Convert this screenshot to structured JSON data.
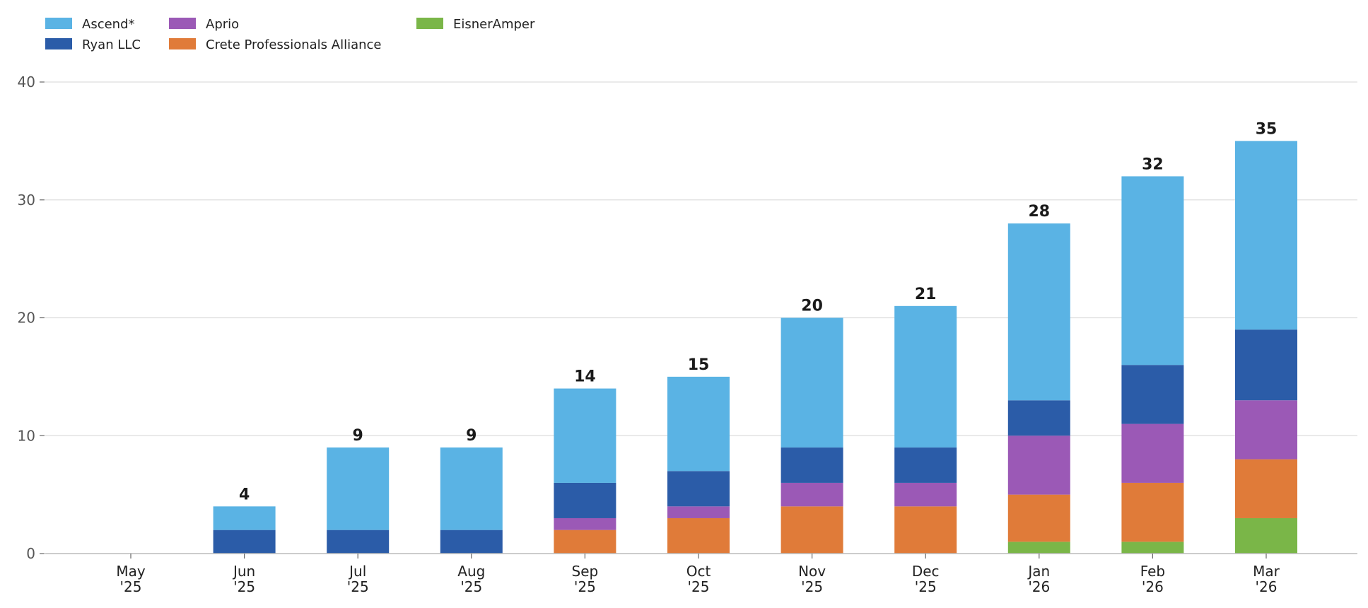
{
  "chart_data": {
    "type": "bar",
    "stacked": true,
    "categories": [
      [
        "May",
        "'25"
      ],
      [
        "Jun",
        "'25"
      ],
      [
        "Jul",
        "'25"
      ],
      [
        "Aug",
        "'25"
      ],
      [
        "Sep",
        "'25"
      ],
      [
        "Oct",
        "'25"
      ],
      [
        "Nov",
        "'25"
      ],
      [
        "Dec",
        "'25"
      ],
      [
        "Jan",
        "'26"
      ],
      [
        "Feb",
        "'26"
      ],
      [
        "Mar",
        "'26"
      ]
    ],
    "series": [
      {
        "name": "EisnerAmper",
        "color": "#7ab648",
        "values": [
          0,
          0,
          0,
          0,
          0,
          0,
          0,
          0,
          1,
          1,
          3
        ]
      },
      {
        "name": "Crete Professionals Alliance",
        "color": "#e07b39",
        "values": [
          0,
          0,
          0,
          0,
          2,
          3,
          4,
          4,
          4,
          5,
          5
        ]
      },
      {
        "name": "Aprio",
        "color": "#9b59b6",
        "values": [
          0,
          0,
          0,
          0,
          1,
          1,
          2,
          2,
          5,
          5,
          5
        ]
      },
      {
        "name": "Ryan LLC",
        "color": "#2b5ca8",
        "values": [
          0,
          2,
          2,
          2,
          3,
          3,
          3,
          3,
          3,
          5,
          6
        ]
      },
      {
        "name": "Ascend*",
        "color": "#5ab3e4",
        "values": [
          0,
          2,
          7,
          7,
          8,
          8,
          11,
          12,
          15,
          16,
          16
        ]
      }
    ],
    "totals": [
      null,
      4,
      9,
      9,
      14,
      15,
      20,
      21,
      28,
      32,
      35
    ],
    "ylim": [
      0,
      40
    ],
    "yticks": [
      0,
      10,
      20,
      30,
      40
    ],
    "grid": true,
    "legend_position": "top-left",
    "legend_order": [
      "Ascend*",
      "Ryan LLC",
      "Aprio",
      "Crete Professionals Alliance",
      "EisnerAmper"
    ]
  }
}
